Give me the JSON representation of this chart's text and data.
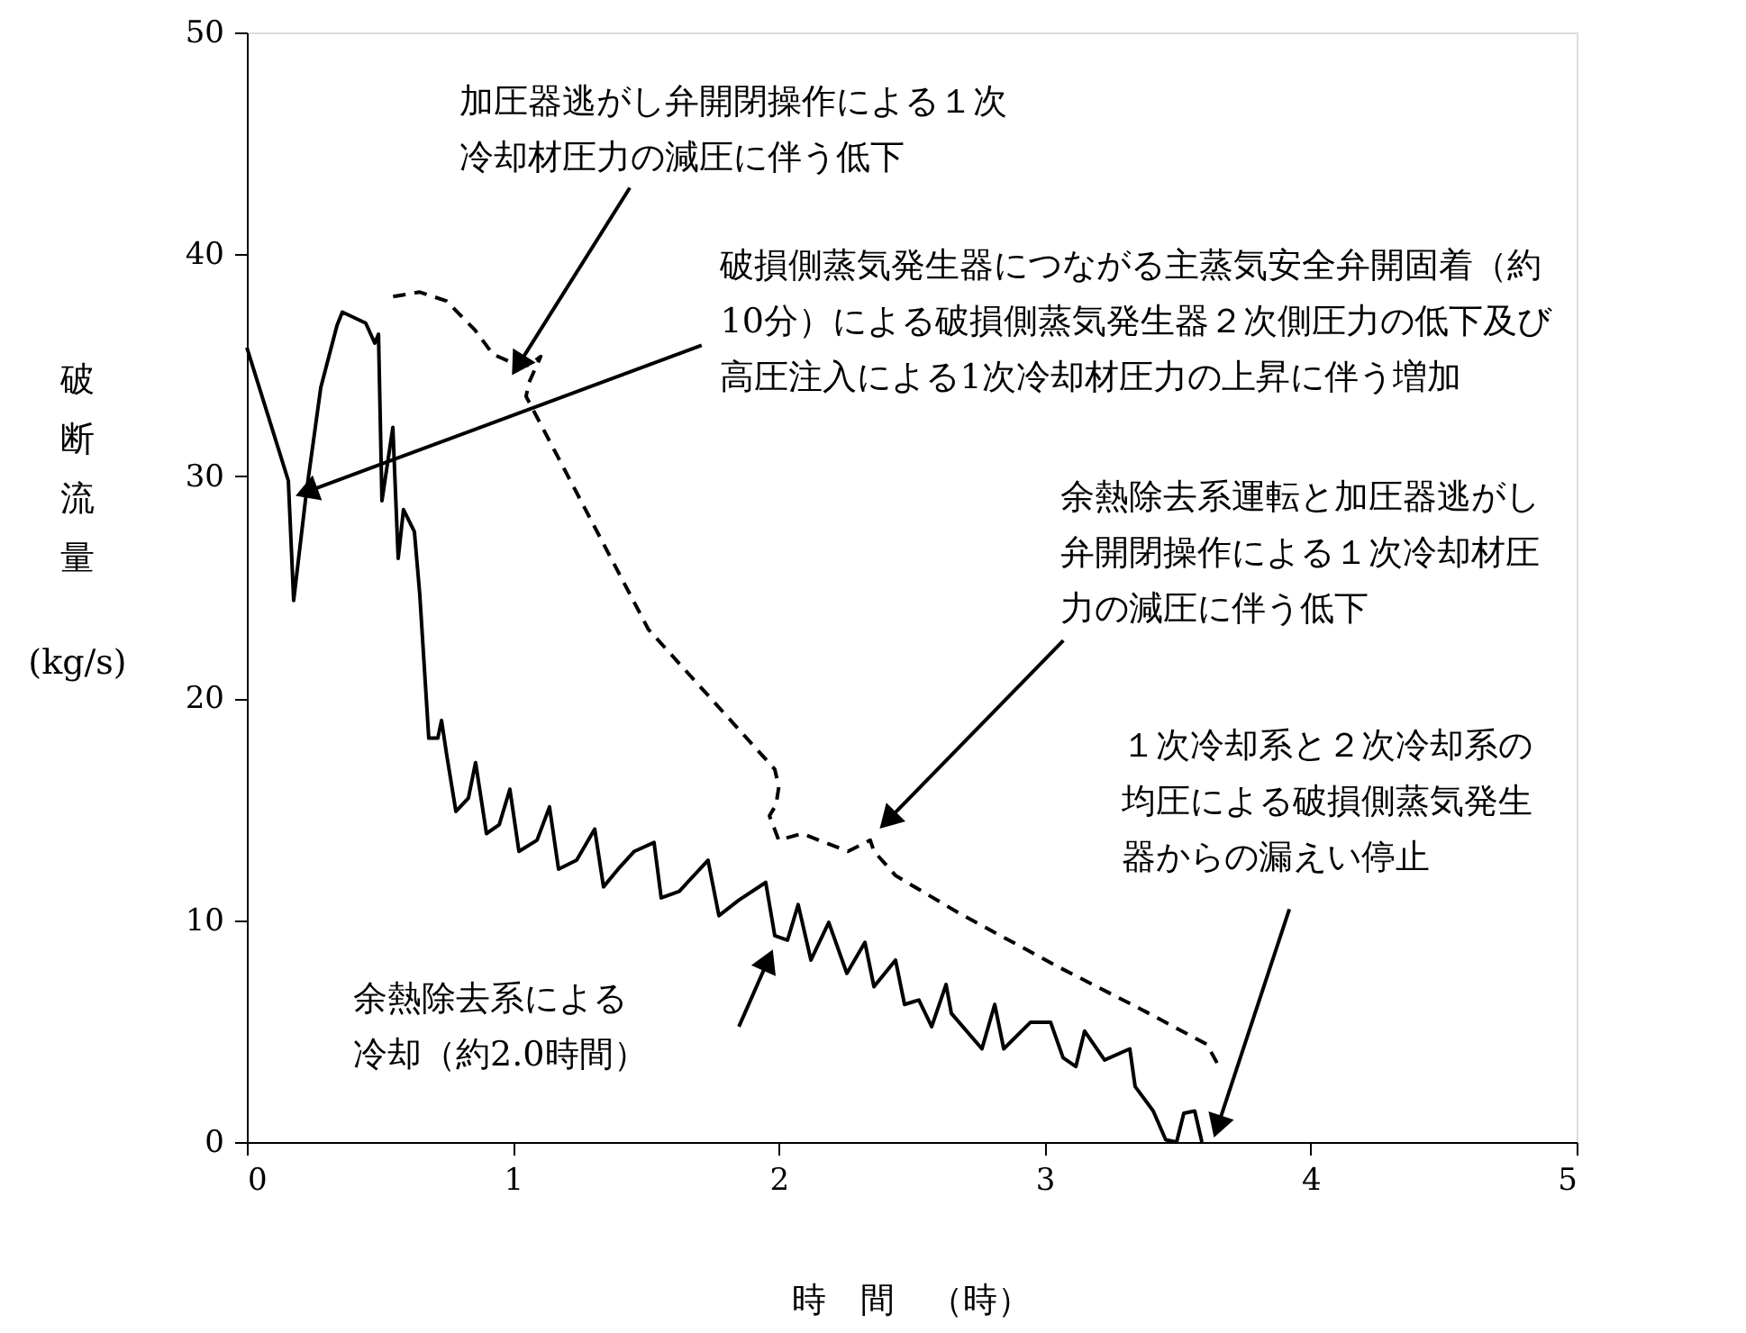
{
  "chart_data": {
    "type": "line",
    "xlabel": "時　間　（時）",
    "ylabel": "破断流量\n(kg/s)",
    "xlim": [
      0,
      5
    ],
    "xticks": [
      0,
      1,
      2,
      3,
      4,
      5
    ],
    "ylim": [
      0,
      50
    ],
    "yticks": [
      0,
      10,
      20,
      30,
      40,
      50
    ],
    "grid": false,
    "series": [
      {
        "color": "#000000",
        "line_style": "solid",
        "x": [
          0,
          0.156,
          0.176,
          0.224,
          0.278,
          0.339,
          0.359,
          0.447,
          0.481,
          0.495,
          0.508,
          0.549,
          0.569,
          0.589,
          0.63,
          0.65,
          0.684,
          0.718,
          0.732,
          0.752,
          0.786,
          0.833,
          0.86,
          0.901,
          0.949,
          0.989,
          1.023,
          1.091,
          1.138,
          1.172,
          1.24,
          1.308,
          1.341,
          1.396,
          1.457,
          1.531,
          1.558,
          1.626,
          1.734,
          1.775,
          1.85,
          1.951,
          1.985,
          2.033,
          2.073,
          2.121,
          2.188,
          2.256,
          2.324,
          2.358,
          2.439,
          2.473,
          2.527,
          2.575,
          2.629,
          2.649,
          2.764,
          2.812,
          2.846,
          2.947,
          3.022,
          3.069,
          3.117,
          3.15,
          3.225,
          3.32,
          3.34,
          3.408,
          3.455,
          3.496,
          3.523,
          3.564,
          3.591
        ],
        "values": [
          35.8,
          29.8,
          24.4,
          29.3,
          34.0,
          36.8,
          37.4,
          36.9,
          36.0,
          36.4,
          28.9,
          32.2,
          26.3,
          28.5,
          27.5,
          24.7,
          18.2,
          18.2,
          19.0,
          17.4,
          14.9,
          15.5,
          17.1,
          13.9,
          14.3,
          15.9,
          13.1,
          13.6,
          15.1,
          12.3,
          12.7,
          14.1,
          11.5,
          12.3,
          13.1,
          13.5,
          11.0,
          11.3,
          12.7,
          10.2,
          10.9,
          11.7,
          9.3,
          9.1,
          10.7,
          8.2,
          9.9,
          7.6,
          9.0,
          7.0,
          8.2,
          6.2,
          6.4,
          5.2,
          7.1,
          5.8,
          4.2,
          6.2,
          4.2,
          5.4,
          5.4,
          3.8,
          3.4,
          5.0,
          3.7,
          4.2,
          2.5,
          1.4,
          0.1,
          0,
          1.3,
          1.4,
          0
        ]
      },
      {
        "color": "#000000",
        "line_style": "dashed",
        "x": [
          0.55,
          0.65,
          0.75,
          0.857,
          0.925,
          1.02,
          1.06,
          1.105,
          1.06,
          1.05,
          1.51,
          1.985,
          2.0,
          1.99,
          1.965,
          2.0,
          2.087,
          2.26,
          2.344,
          2.358,
          2.44,
          2.68,
          3.05,
          3.36,
          3.61,
          3.66
        ],
        "values": [
          38.1,
          38.3,
          37.9,
          36.6,
          35.5,
          35.0,
          35.0,
          35.4,
          34.2,
          33.6,
          23.1,
          16.8,
          16.0,
          15.2,
          14.7,
          13.6,
          13.9,
          13.1,
          13.6,
          13.1,
          12.0,
          10.3,
          7.9,
          6.0,
          4.4,
          3.3
        ]
      }
    ],
    "annotations": [
      {
        "text": "加圧器逃がし弁開閉操作による１次冷却材圧力の減圧に伴う低下",
        "x": 1.02,
        "y": 35.0
      },
      {
        "text": "破損側蒸気発生器につながる主蒸気安全弁開固着（約10分）による破損側蒸気発生器２次側圧力の低下及び高圧注入による1次冷却材圧力の上昇に伴う増加",
        "x": 0.224,
        "y": 29.3
      },
      "余熱除去系運転と加圧器逃がし弁開閉操作による１次冷却材圧力の減圧に伴う低下",
      "１次冷却系と２次冷却系の均圧による破損側蒸気発生器からの漏えい停止",
      "余熱除去系による冷却（約2.0時間）"
    ]
  }
}
